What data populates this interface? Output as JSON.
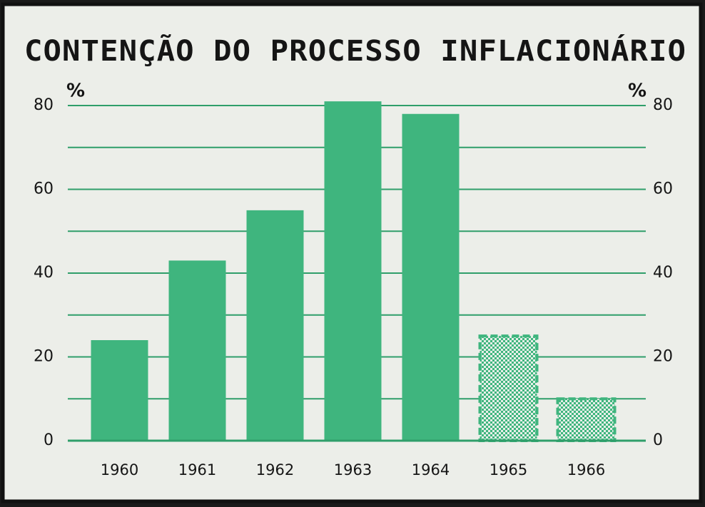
{
  "chart_data": {
    "type": "bar",
    "title": "CONTENÇÃO DO PROCESSO INFLACIONÁRIO",
    "y_label": "%",
    "y2_label": "%",
    "categories": [
      "1960",
      "1961",
      "1962",
      "1963",
      "1964",
      "1965",
      "1966"
    ],
    "values": [
      24,
      43,
      55,
      81,
      78,
      25,
      10
    ],
    "hatched": [
      false,
      false,
      false,
      false,
      false,
      true,
      true
    ],
    "color": "#3fb57e",
    "ylim": [
      0,
      80
    ],
    "yticks": [
      0,
      20,
      40,
      60,
      80
    ],
    "minor_yticks": [
      10,
      30,
      50,
      70
    ],
    "y2lim": [
      0,
      80
    ],
    "y2ticks": [
      0,
      20,
      40,
      60,
      80
    ],
    "grid": true
  }
}
